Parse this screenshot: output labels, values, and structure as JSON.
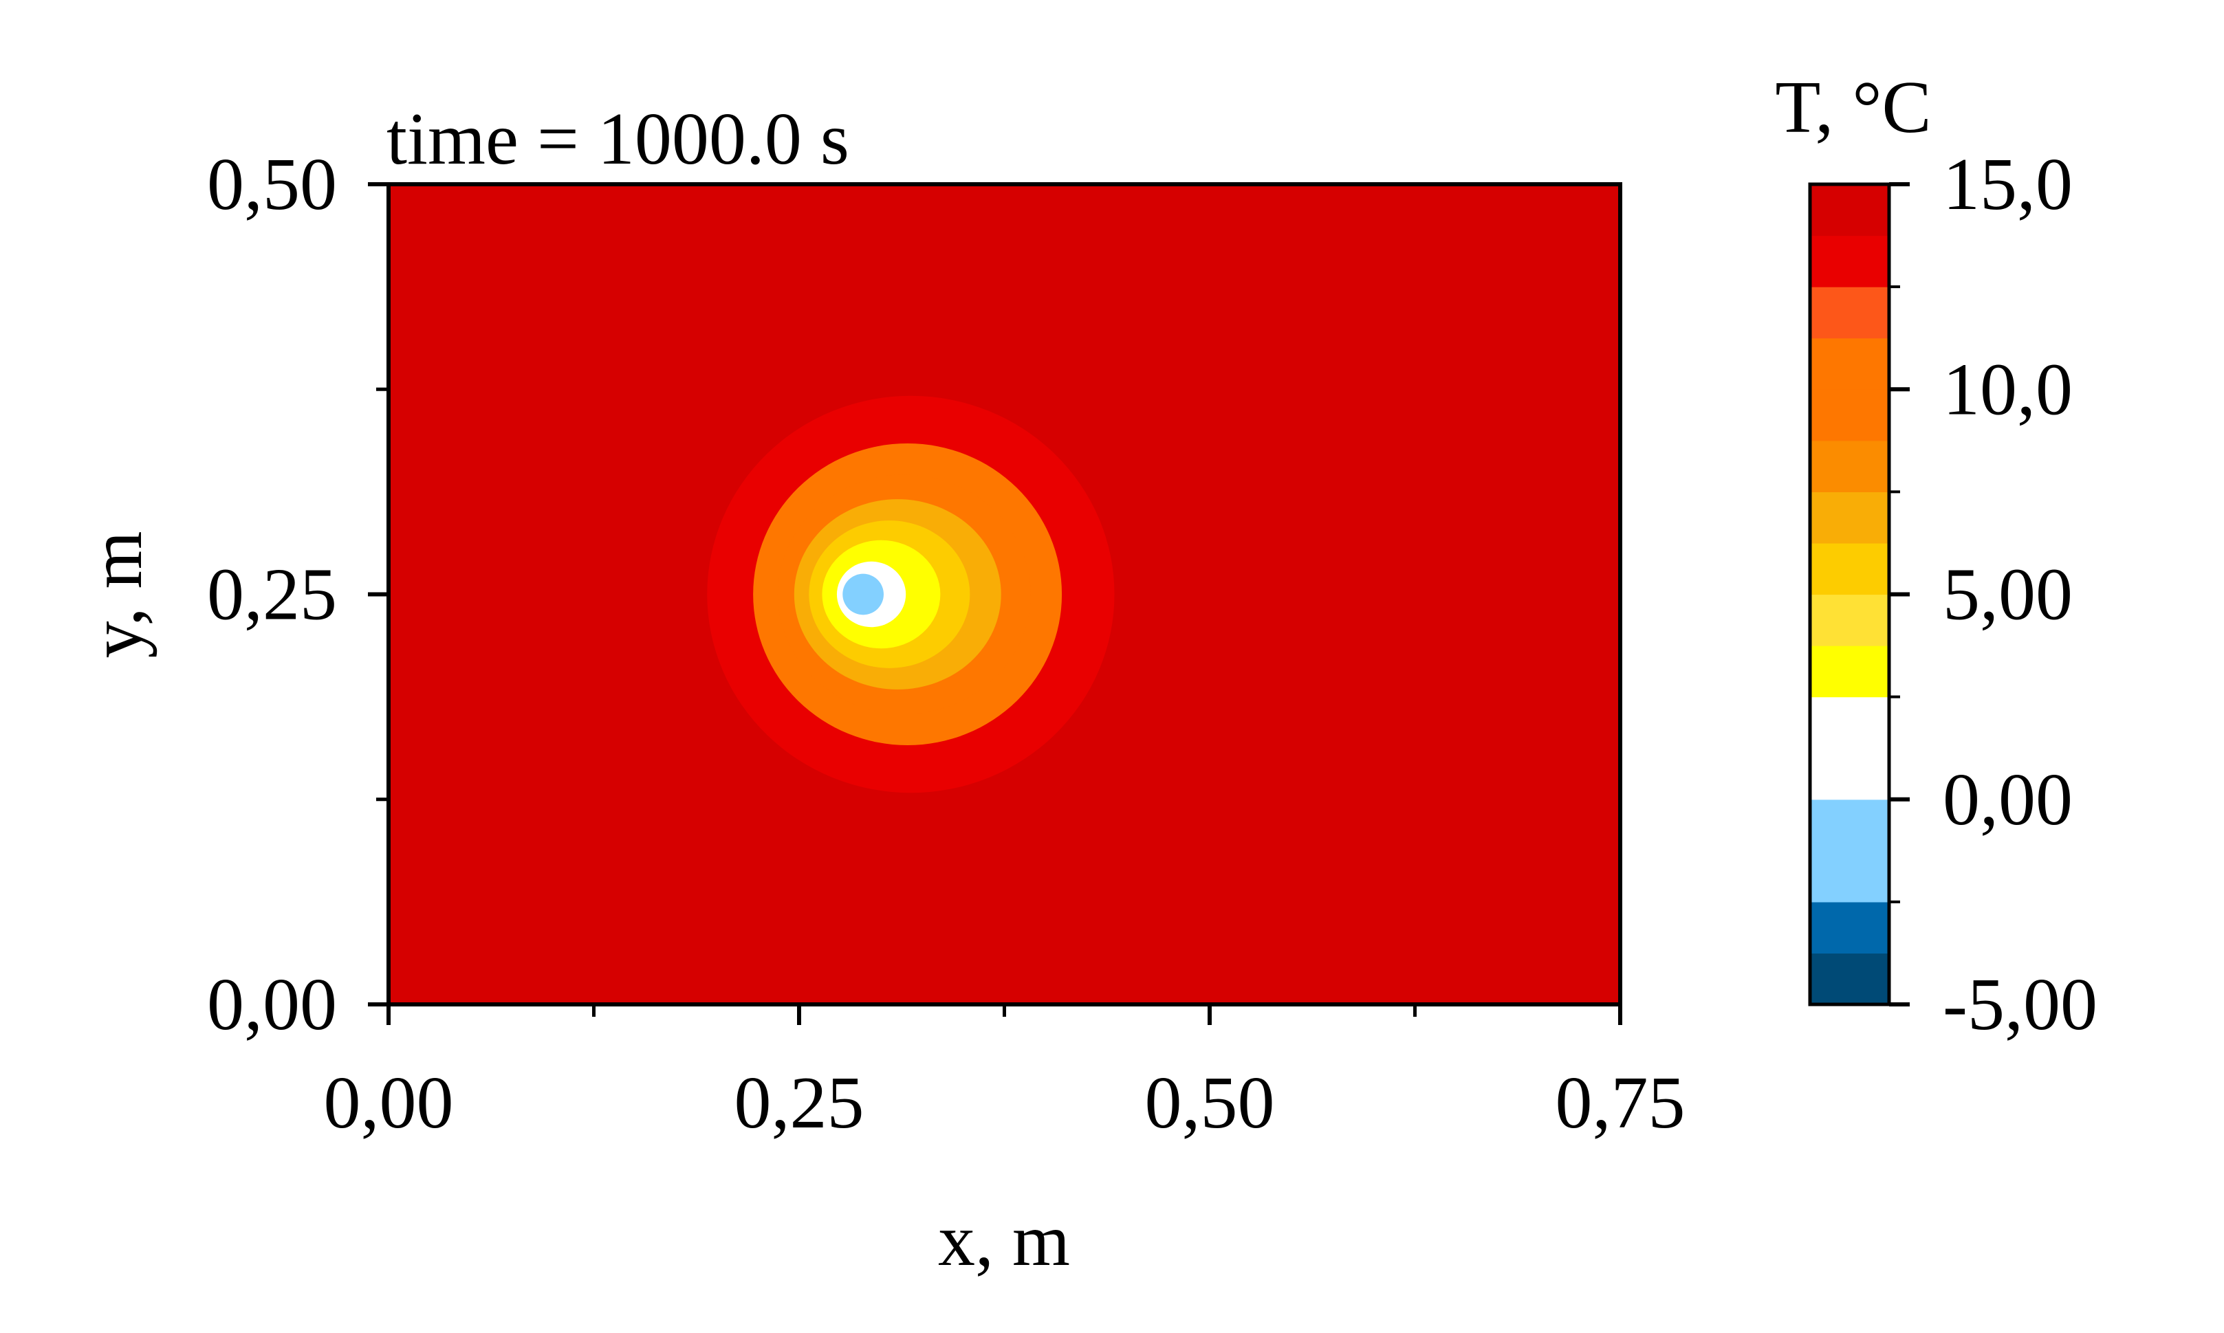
{
  "chart_data": {
    "type": "heatmap",
    "title": "",
    "annotation": "time = 1000.0 s",
    "xlabel": "x, m",
    "ylabel": "y, m",
    "xlim": [
      0,
      0.75
    ],
    "ylim": [
      0,
      0.5
    ],
    "x_ticks": [
      {
        "value": 0.0,
        "label": "0,00"
      },
      {
        "value": 0.25,
        "label": "0,25"
      },
      {
        "value": 0.5,
        "label": "0,50"
      },
      {
        "value": 0.75,
        "label": "0,75"
      }
    ],
    "x_minor_ticks": [
      0.125,
      0.375,
      0.625
    ],
    "y_ticks": [
      {
        "value": 0.0,
        "label": "0,00"
      },
      {
        "value": 0.25,
        "label": "0,25"
      },
      {
        "value": 0.5,
        "label": "0,50"
      }
    ],
    "y_minor_ticks": [
      0.125,
      0.375
    ],
    "background_level": 14.4,
    "contours": [
      {
        "level": 12.5,
        "cx": 0.318,
        "cy": 0.25,
        "rx": 0.124,
        "ry": 0.121
      },
      {
        "level": 10.6,
        "cx": 0.316,
        "cy": 0.25,
        "rx": 0.094,
        "ry": 0.092
      },
      {
        "level": 8.8,
        "cx": 0.314,
        "cy": 0.25,
        "rx": 0.077,
        "ry": 0.073
      },
      {
        "level": 6.9,
        "cx": 0.31,
        "cy": 0.25,
        "rx": 0.063,
        "ry": 0.058
      },
      {
        "level": 5.0,
        "cx": 0.305,
        "cy": 0.25,
        "rx": 0.049,
        "ry": 0.045
      },
      {
        "level": 3.1,
        "cx": 0.3,
        "cy": 0.25,
        "rx": 0.036,
        "ry": 0.033
      },
      {
        "level": 1.25,
        "cx": 0.294,
        "cy": 0.25,
        "rx": 0.021,
        "ry": 0.02
      },
      {
        "level": 0.6,
        "cx": 0.294,
        "cy": 0.25,
        "rx": 0.018,
        "ry": 0.018
      },
      {
        "level": -0.6,
        "cx": 0.289,
        "cy": 0.25,
        "rx": 0.0125,
        "ry": 0.0125
      }
    ],
    "colorbar": {
      "title": "T, °C",
      "min": -5,
      "max": 15,
      "levels": [
        {
          "from": -5.0,
          "to": -3.75,
          "color": "#004a76"
        },
        {
          "from": -3.75,
          "to": -2.5,
          "color": "#0068ab"
        },
        {
          "from": -2.5,
          "to": -1.25,
          "color": "#83d0ff"
        },
        {
          "from": -1.25,
          "to": 0.0,
          "color": "#83d0ff"
        },
        {
          "from": 0.0,
          "to": 1.25,
          "color": "#ffffff"
        },
        {
          "from": 1.25,
          "to": 2.5,
          "color": "#ffffff"
        },
        {
          "from": 2.5,
          "to": 3.75,
          "color": "#ffff00"
        },
        {
          "from": 3.75,
          "to": 5.0,
          "color": "#ffe135"
        },
        {
          "from": 5.0,
          "to": 6.25,
          "color": "#fdcc00"
        },
        {
          "from": 6.25,
          "to": 7.5,
          "color": "#f9ad06"
        },
        {
          "from": 7.5,
          "to": 8.75,
          "color": "#fb8c00"
        },
        {
          "from": 8.75,
          "to": 10.0,
          "color": "#fe7700"
        },
        {
          "from": 10.0,
          "to": 11.25,
          "color": "#fe7700"
        },
        {
          "from": 11.25,
          "to": 12.5,
          "color": "#fd5719"
        },
        {
          "from": 12.5,
          "to": 13.75,
          "color": "#e90000"
        },
        {
          "from": 13.75,
          "to": 15.0,
          "color": "#d60000"
        }
      ],
      "ticks": [
        {
          "value": -5,
          "label": "-5,00"
        },
        {
          "value": 0,
          "label": "0,00"
        },
        {
          "value": 5,
          "label": "5,00"
        },
        {
          "value": 10,
          "label": "10,0"
        },
        {
          "value": 15,
          "label": "15,0"
        }
      ],
      "minor_ticks": [
        -2.5,
        2.5,
        7.5,
        12.5
      ]
    }
  }
}
